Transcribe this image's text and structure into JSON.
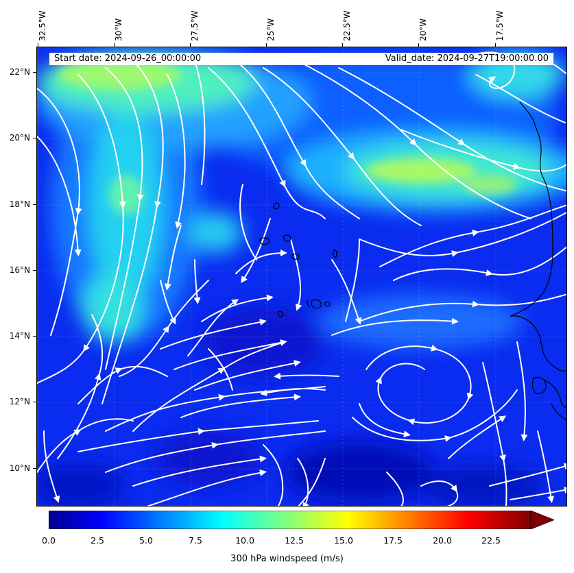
{
  "header": {
    "start_date": "Start date: 2024-09-26_00:00:00",
    "valid_date": "Valid_date: 2024-09-27T19:00:00.00"
  },
  "axes": {
    "lon_labels": [
      "32.5°W",
      "30°W",
      "27.5°W",
      "25°W",
      "22.5°W",
      "20°W",
      "17.5°W"
    ],
    "lat_labels": [
      "22°N",
      "20°N",
      "18°N",
      "16°N",
      "14°N",
      "12°N",
      "10°N"
    ]
  },
  "colorbar": {
    "title": "300 hPa windspeed (m/s)",
    "ticks": [
      "0.0",
      "2.5",
      "5.0",
      "7.5",
      "10.0",
      "12.5",
      "15.0",
      "17.5",
      "20.0",
      "22.5"
    ],
    "min": 0,
    "max": 25,
    "extend": "max"
  },
  "map": {
    "field": "300 hPa windspeed",
    "lon_range": [
      -32.7,
      -15.3
    ],
    "lat_range": [
      8.9,
      22.8
    ],
    "colormap": "jet",
    "streamline_color": "#ffffff",
    "coastline_color": "#000000"
  }
}
